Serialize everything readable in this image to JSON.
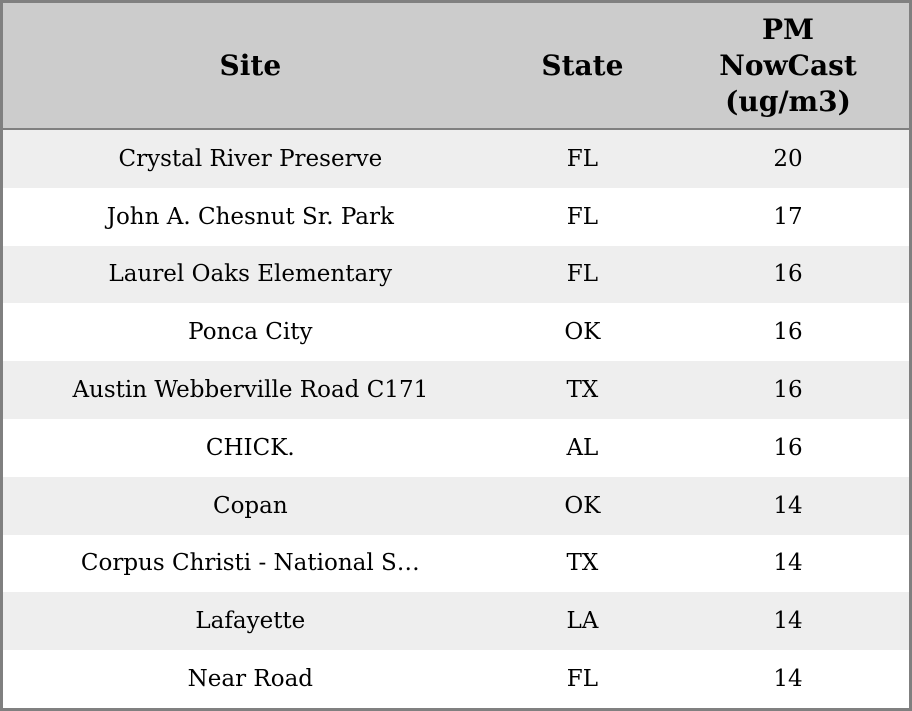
{
  "table": {
    "columns": [
      {
        "label": "Site"
      },
      {
        "label": "State"
      },
      {
        "label": "PM NowCast (ug/m3)"
      }
    ],
    "rows": [
      {
        "site": "Crystal River Preserve",
        "state": "FL",
        "pm_nowcast": "20"
      },
      {
        "site": "John A. Chesnut Sr. Park",
        "state": "FL",
        "pm_nowcast": "17"
      },
      {
        "site": "Laurel Oaks Elementary",
        "state": "FL",
        "pm_nowcast": "16"
      },
      {
        "site": "Ponca City",
        "state": "OK",
        "pm_nowcast": "16"
      },
      {
        "site": "Austin Webberville Road C171",
        "state": "TX",
        "pm_nowcast": "16"
      },
      {
        "site": "CHICK.",
        "state": "AL",
        "pm_nowcast": "16"
      },
      {
        "site": "Copan",
        "state": "OK",
        "pm_nowcast": "14"
      },
      {
        "site": "Corpus Christi - National S…",
        "state": "TX",
        "pm_nowcast": "14"
      },
      {
        "site": "Lafayette",
        "state": "LA",
        "pm_nowcast": "14"
      },
      {
        "site": "Near Road",
        "state": "FL",
        "pm_nowcast": "14"
      }
    ]
  },
  "colors": {
    "header_bg": "#cccccc",
    "row_alt_bg": "#eeeeee",
    "row_bg": "#ffffff",
    "border": "#808080",
    "text": "#000000"
  }
}
